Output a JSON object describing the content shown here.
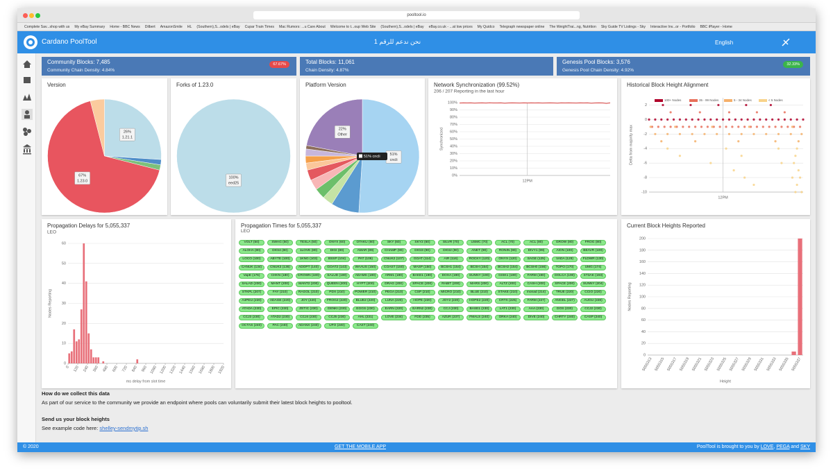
{
  "browser": {
    "url": "pooltool.io",
    "bookmarks": [
      "Complete Sav...shop with us",
      "My eBay Summary",
      "Home - BBC News",
      "Dilbert",
      "AmazonSmile",
      "HL",
      "(Southern),S...odels | eBay",
      "Cupar Train Times",
      "Mac Rumors: ...u Care About",
      "Welcome to t...oup Web Site",
      "(Southern),S...odels | eBay",
      "eBay.co.uk - ...at low prices",
      "My Quidco",
      "Telegraph newspaper online",
      "The WeightTrai...ng, Nutrition",
      "Sky Guide TV Listings - Sky",
      "Interactive Inv...or - Portfolio",
      "BBC iPlayer - Home"
    ]
  },
  "header": {
    "brand": "Cardano PoolTool",
    "motto": "نحن ندعم للرقم 1",
    "language": "English"
  },
  "cards": [
    {
      "title": "Community Blocks: 7,485",
      "badge": "67.67%",
      "subtitle": "Community Chain Density: 4.84%"
    },
    {
      "title": "Total Blocks: 11,061",
      "subtitle": "Chain Density: 4.87%"
    },
    {
      "title": "Genesis Pool Blocks: 3,576",
      "badge": "32.33%",
      "subtitle": "Genesis Pool Chain Density: 4.92%"
    }
  ],
  "chart_data": [
    {
      "type": "pie",
      "title": "Version",
      "values": [
        26,
        1.5,
        1.5,
        67,
        4
      ],
      "value_labels": [
        "26%",
        null,
        null,
        "67%",
        null
      ],
      "names": [
        "1.21.1",
        null,
        null,
        "1.23.0",
        null
      ],
      "colors": [
        "#bcdde9",
        "#4e8dc8",
        "#7cc07a",
        "#e8555f",
        "#fbcb9e"
      ]
    },
    {
      "type": "pie",
      "title": "Forks of 1.23.0",
      "values": [
        100
      ],
      "value_labels": [
        "100%"
      ],
      "names": [
        "eed25"
      ],
      "colors": [
        "#bcdde9"
      ]
    },
    {
      "type": "pie",
      "title": "Platform Version",
      "values": [
        51,
        8,
        3,
        3,
        3,
        3,
        2,
        2,
        2,
        1,
        22
      ],
      "value_labels": [
        "51%",
        null,
        null,
        null,
        null,
        null,
        null,
        null,
        null,
        null,
        "22%"
      ],
      "names": [
        "cncli",
        null,
        null,
        null,
        null,
        null,
        null,
        null,
        null,
        null,
        "Other"
      ],
      "colors": [
        "#a6d4f2",
        "#5b9bd0",
        "#c5e3a5",
        "#6cbf6a",
        "#f8b6b6",
        "#e4595f",
        "#fbc79a",
        "#f5a04a",
        "#c7b6dc",
        "#8c6d5a",
        "#9a7fb8"
      ],
      "tooltip": "51% cncli"
    },
    {
      "type": "line",
      "title": "Network Synchronization (99.52%)",
      "subtitle": "206 / 207 Reporting in the last hour",
      "ylabel": "Synchronized",
      "x": [
        0,
        1,
        2,
        3,
        4,
        5,
        6,
        7,
        8,
        9,
        10,
        11,
        12,
        13,
        14,
        15,
        16,
        17,
        18,
        19,
        20,
        21,
        22,
        23,
        24,
        25,
        26,
        27,
        28,
        29,
        30,
        31,
        32,
        33,
        34,
        35,
        36,
        37,
        38,
        39,
        40
      ],
      "series": [
        {
          "color": "#d9413f",
          "values": [
            99.4,
            99.6,
            99.5,
            99.7,
            99.3,
            99.5,
            99.6,
            99.4,
            99.8,
            99.5,
            99.5,
            99.6,
            99.2,
            99.5,
            99.7,
            99.5,
            99.4,
            99.6,
            99.5,
            99.6,
            99.5,
            99.7,
            99.4,
            99.5,
            99.6,
            99.5,
            99.3,
            99.6,
            99.5,
            99.7,
            99.5,
            99.4,
            99.6,
            99.5,
            99.6,
            99.2,
            99.5,
            99.7,
            99.5,
            98.9,
            99.6
          ]
        }
      ],
      "xlim": [
        0,
        40
      ],
      "xticks": [
        {
          "value": 18,
          "label": "12PM"
        }
      ],
      "ylim": [
        0,
        100
      ],
      "yticks": [
        {
          "value": 0,
          "label": "0%"
        },
        {
          "value": 10,
          "label": "10%"
        },
        {
          "value": 20,
          "label": "20%"
        },
        {
          "value": 30,
          "label": "30%"
        },
        {
          "value": 40,
          "label": "40%"
        },
        {
          "value": 50,
          "label": "50%"
        },
        {
          "value": 60,
          "label": "60%"
        },
        {
          "value": 70,
          "label": "70%"
        },
        {
          "value": 80,
          "label": "80%"
        },
        {
          "value": 90,
          "label": "90%"
        },
        {
          "value": 100,
          "label": "100%"
        }
      ],
      "grid": true
    },
    {
      "type": "scatter",
      "title": "Historical Block Height Alignment",
      "ylabel": "Delta from majority max",
      "xlim": [
        0,
        100
      ],
      "xticks": [
        {
          "value": 48,
          "label": "12PM"
        }
      ],
      "ylim": [
        -10,
        3
      ],
      "yticks": [
        2,
        0,
        -2,
        -4,
        -6,
        -8,
        -10
      ],
      "grid": true,
      "series": [
        {
          "name": "100+ Nodes",
          "color": "#b0002a",
          "x": [
            0,
            4,
            8,
            12,
            16,
            20,
            24,
            28,
            32,
            36,
            40,
            44,
            48,
            52,
            56,
            60,
            64,
            68,
            72,
            76,
            80,
            84,
            88,
            92,
            96,
            100,
            9,
            27,
            45,
            63,
            79
          ],
          "y": [
            0,
            0,
            0,
            0,
            0,
            0,
            0,
            0,
            0,
            0,
            0,
            0,
            0,
            0,
            0,
            0,
            0,
            0,
            0,
            0,
            0,
            0,
            0,
            0,
            0,
            0,
            2,
            2,
            2,
            2,
            2
          ]
        },
        {
          "name": "35 - 99 Nodes",
          "color": "#e8705a",
          "x": [
            2,
            6,
            10,
            14,
            18,
            22,
            26,
            30,
            34,
            38,
            42,
            46,
            50,
            54,
            58,
            62,
            66,
            70,
            74,
            78,
            82,
            86,
            90,
            94,
            98,
            14,
            33,
            52,
            70,
            88
          ],
          "y": [
            -1,
            -1,
            -1,
            -1,
            -1,
            -1,
            -1,
            -1,
            -1,
            -1,
            -1,
            -1,
            -1,
            -1,
            -1,
            -1,
            -1,
            -1,
            -1,
            -1,
            -1,
            -1,
            -1,
            -1,
            -1,
            1,
            1,
            1,
            1,
            1
          ]
        },
        {
          "name": "5 - 34 Nodes",
          "color": "#f5b06a",
          "x": [
            4,
            12,
            20,
            28,
            36,
            44,
            52,
            60,
            68,
            76,
            84,
            92,
            99,
            8,
            30,
            58,
            82,
            97,
            1,
            17,
            41,
            65,
            93
          ],
          "y": [
            -2,
            -2,
            -2,
            -2,
            -2,
            -2,
            -2,
            -2,
            -2,
            -2,
            -2,
            -2,
            -2,
            -3,
            -3,
            -3,
            -3,
            -3,
            -1,
            -1,
            -1,
            -1,
            -1
          ]
        },
        {
          "name": "< 5 Nodes",
          "color": "#f8d38a",
          "x": [
            12,
            50,
            84,
            96,
            20,
            60,
            95,
            40,
            86,
            94,
            55,
            97,
            62,
            93,
            98,
            68,
            96,
            95,
            99
          ],
          "y": [
            -4,
            -4,
            -4,
            -4,
            -5,
            -5,
            -5,
            -6,
            -6,
            -6,
            -7,
            -7,
            -8,
            -8,
            -8,
            -9,
            -9,
            -10,
            -10
          ]
        }
      ]
    },
    {
      "type": "histogram",
      "title": "Propagation Delays for 5,055,337",
      "subtitle": "LEO",
      "xlabel": "ms delay from slot time",
      "ylabel": "Nodes Reporting",
      "color": "#e8707a",
      "bins": [
        0,
        30,
        60,
        90,
        120,
        150,
        180,
        210,
        240,
        270,
        300,
        330,
        360,
        390,
        420,
        450,
        480,
        510,
        540,
        570,
        600,
        630,
        660,
        690,
        720,
        750,
        780,
        810,
        840,
        870
      ],
      "values": [
        5,
        6,
        17,
        11,
        12,
        27,
        60,
        41,
        15,
        7,
        3,
        3,
        3,
        0,
        1,
        0,
        0,
        0,
        0,
        0,
        0,
        0,
        0,
        0,
        0,
        0,
        0,
        0,
        2
      ],
      "xlim": [
        0,
        1920
      ],
      "xticks": [
        0,
        120,
        240,
        360,
        480,
        600,
        720,
        840,
        960,
        1080,
        1200,
        1320,
        1440,
        1560,
        1680,
        1800,
        1920
      ],
      "ylim": [
        0,
        60
      ],
      "yticks": [
        0,
        10,
        20,
        30,
        40,
        50,
        60
      ],
      "grid": true
    },
    {
      "type": "bar",
      "title": "Current Block Heights Reported",
      "xlabel": "Height",
      "ylabel": "Nodes Reporting",
      "color": "#e8707a",
      "categories": [
        "5055313",
        null,
        "5055315",
        null,
        "5055317",
        null,
        "5055319",
        null,
        "5055321",
        null,
        "5055323",
        null,
        "5055325",
        null,
        "5055327",
        null,
        "5055329",
        null,
        "5055331",
        null,
        "5055333",
        null,
        "5055335",
        null,
        "5055337"
      ],
      "values": [
        0,
        0,
        0,
        0,
        0,
        0,
        0,
        0,
        0,
        0,
        0,
        0,
        0,
        0,
        0,
        0,
        0,
        0,
        0,
        0,
        0,
        0,
        0,
        6,
        200
      ],
      "ylim": [
        0,
        200
      ],
      "yticks": [
        0,
        20,
        40,
        60,
        80,
        100,
        120,
        140,
        160,
        180,
        200
      ],
      "grid": true
    }
  ],
  "propagation_times": {
    "title": "Propagation Times for 5,055,337",
    "subtitle": "LEO",
    "pools": [
      "VOLT (50)",
      "SWAG (50)",
      "TESLA (50)",
      "ONYX (60)",
      "OTAKU (60)",
      "SKY (60)",
      "SKY2 (60)",
      "SILVR (70)",
      "USMC (70)",
      "ACL (70)",
      "ACL (80)",
      "GROW (80)",
      "FROG (80)",
      "ALOHA (80)",
      "DIGI4 (80)",
      "1LOVE (80)",
      "DIGI (80)",
      "AMAR (89)",
      "CHAMP (90)",
      "DIGI3 (90)",
      "DIGI2 (90)",
      "ANET (90)",
      "RONIN (90)",
      "DIVY1 (99)",
      "AION (100)",
      "BEAVR (100)",
      "LOCO (100)",
      "ABYTE (100)",
      "1KNG (103)",
      "BSSP (104)",
      "PAT (106)",
      "CNUK2 (107)",
      "GOAT (114)",
      "AIR (116)",
      "ROCKY (120)",
      "ONYX (120)",
      "SAGE (125)",
      "VADA (128)",
      "FLDWR (130)",
      "CANUK (134)",
      "CNUK3 (136)",
      "ADOPT (140)",
      "GOAT2 (143)",
      "WAAUS (150)",
      "COAST (150)",
      "MASP (150)",
      "BCSH1 (154)",
      "BCSH (154)",
      "BCSH2 (154)",
      "BCSH0 (156)",
      "TOPO (170)",
      "UMG (174)",
      "VapE (176)",
      "CHKN (180)",
      "CROWN (180)",
      "SALUD (180)",
      "ADAMS (180)",
      "ARM1 (180)",
      "BAKE1 (190)",
      "DOXA (190)",
      "SUNNY (190)",
      "GISK1 (190)",
      "FARM (190)",
      "DOLCA (190)",
      "ST3AK (193)",
      "SALAD (200)",
      "MANT (200)",
      "MANT2 (200)",
      "QUEEN (200)",
      "HYPT (200)",
      "DRAG (200)",
      "SPACE (200)",
      "RABIT (200)",
      "MARS (200)",
      "ALTZ (200)",
      "CASH (200)",
      "SPACE (200)",
      "SUNNY (204)",
      "STKPL (207)",
      "FAY (210)",
      "RAGOL (210)",
      "PDX (210)",
      "POWER (210)",
      "PEGA (210)",
      "CSP (210)",
      "MICRO (210)",
      "BLUE (210)",
      "STAKE (210)",
      "monad (214)",
      "TRUE (220)",
      "CCIO (220)",
      "A4PEU (220)",
      "ADAGE (220)",
      "JOY (220)",
      "FROG2 (220)",
      "BLUE2 (220)",
      "LUNA (220)",
      "HOPE (220)",
      "JOY2 (220)",
      "HOPE2 (220)",
      "CRTX (225)",
      "FARM (227)",
      "ANGEL (227)",
      "AUGU (228)",
      "ATADA (230)",
      "EPIC (230)",
      "ZETIC (230)",
      "GENKI (230)",
      "EGGS (230)",
      "EARN (220)",
      "EARN2 (230)",
      "CCJ (230)",
      "BASE1 (230)",
      "LAT1 (230)",
      "AAA (230)",
      "DOS (230)",
      "CCJ2 (230)",
      "CCJ3 (230)",
      "ATAD2 (230)",
      "CCJ4 (230)",
      "CCJ5 (230)",
      "AHL (231)",
      "LOVE (234)",
      "FDD (235)",
      "AZUR (237)",
      "FMALS (240)",
      "ORKA (240)",
      "DIVE (240)",
      "CHRTY (240)",
      "CASP (240)",
      "OCTAS (240)",
      "PAC (240)",
      "ADANX (240)",
      "UFO (240)",
      "CAST (240)"
    ]
  },
  "info": {
    "heading": "How do we collect this data",
    "text": "As part of our service to the community we provide an endpoint where pools can voluntarily submit their latest block heights to pooltool.",
    "heading2": "Send us your block heights",
    "example": "See example code here:",
    "link": "shelley-sendmytip.sh"
  },
  "footer": {
    "copyright": "© 2020",
    "mobile": "GET THE MOBILE APP",
    "credit": "PoolTool is brought to you by",
    "links": [
      "LOVE",
      "PEGA",
      "SKY"
    ],
    "separator": ",",
    "conjunction": "and"
  }
}
